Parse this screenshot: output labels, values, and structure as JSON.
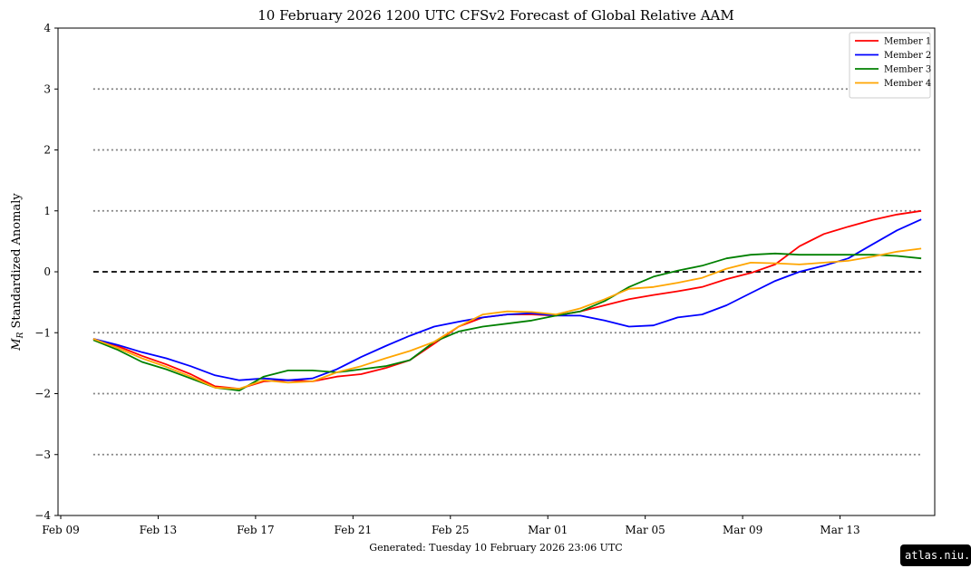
{
  "chart_data": {
    "type": "line",
    "title": "10  February  2026 1200 UTC   CFSv2 Forecast of Global Relative AAM",
    "ylabel_symbol": "M",
    "ylabel_subscript": "R",
    "ylabel": " Standardized Anomaly",
    "footer": "Generated: Tuesday  10  February  2026  23:06 UTC",
    "watermark": "atlas.niu.edu",
    "x_ticks": [
      "Feb 09",
      "Feb 13",
      "Feb 17",
      "Feb 21",
      "Feb 25",
      "Mar 01",
      "Mar 05",
      "Mar 09",
      "Mar 13"
    ],
    "y_ticks": [
      "−4",
      "−3",
      "−2",
      "−1",
      "0",
      "1",
      "2",
      "3",
      "4"
    ],
    "xlim": [
      "2026-02-09",
      "2026-03-17"
    ],
    "ylim": [
      -4,
      4
    ],
    "dotted_reference_lines": [
      -3,
      -2,
      -1,
      1,
      2,
      3
    ],
    "dashed_reference_line": 0,
    "legend_position": "top-right",
    "dates": [
      "2026-02-10",
      "2026-02-11",
      "2026-02-12",
      "2026-02-13",
      "2026-02-14",
      "2026-02-15",
      "2026-02-16",
      "2026-02-17",
      "2026-02-18",
      "2026-02-19",
      "2026-02-20",
      "2026-02-21",
      "2026-02-22",
      "2026-02-23",
      "2026-02-24",
      "2026-02-25",
      "2026-02-26",
      "2026-02-27",
      "2026-02-28",
      "2026-03-01",
      "2026-03-02",
      "2026-03-03",
      "2026-03-04",
      "2026-03-05",
      "2026-03-06",
      "2026-03-07",
      "2026-03-08",
      "2026-03-09",
      "2026-03-10",
      "2026-03-11",
      "2026-03-12",
      "2026-03-13",
      "2026-03-14",
      "2026-03-15",
      "2026-03-16"
    ],
    "series": [
      {
        "name": "Member 1",
        "color": "#ff0000",
        "values": [
          -1.1,
          -1.22,
          -1.38,
          -1.52,
          -1.68,
          -1.88,
          -1.92,
          -1.8,
          -1.78,
          -1.8,
          -1.72,
          -1.68,
          -1.58,
          -1.45,
          -1.18,
          -0.9,
          -0.75,
          -0.7,
          -0.7,
          -0.72,
          -0.65,
          -0.55,
          -0.45,
          -0.38,
          -0.32,
          -0.25,
          -0.12,
          -0.02,
          0.12,
          0.42,
          0.62,
          0.74,
          0.85,
          0.94,
          1.0
        ]
      },
      {
        "name": "Member 2",
        "color": "#0000ff",
        "values": [
          -1.1,
          -1.2,
          -1.32,
          -1.42,
          -1.55,
          -1.7,
          -1.78,
          -1.75,
          -1.78,
          -1.75,
          -1.6,
          -1.4,
          -1.22,
          -1.05,
          -0.9,
          -0.82,
          -0.75,
          -0.7,
          -0.68,
          -0.72,
          -0.72,
          -0.8,
          -0.9,
          -0.88,
          -0.75,
          -0.7,
          -0.55,
          -0.35,
          -0.15,
          0.0,
          0.1,
          0.22,
          0.45,
          0.68,
          0.86
        ]
      },
      {
        "name": "Member 3",
        "color": "#008000",
        "values": [
          -1.12,
          -1.28,
          -1.48,
          -1.6,
          -1.75,
          -1.9,
          -1.95,
          -1.72,
          -1.62,
          -1.62,
          -1.65,
          -1.6,
          -1.55,
          -1.45,
          -1.15,
          -0.98,
          -0.9,
          -0.85,
          -0.8,
          -0.72,
          -0.65,
          -0.48,
          -0.25,
          -0.08,
          0.02,
          0.1,
          0.22,
          0.28,
          0.3,
          0.28,
          0.28,
          0.28,
          0.28,
          0.26,
          0.22
        ]
      },
      {
        "name": "Member 4",
        "color": "#ffa500",
        "values": [
          -1.1,
          -1.25,
          -1.42,
          -1.56,
          -1.72,
          -1.9,
          -1.92,
          -1.78,
          -1.82,
          -1.8,
          -1.65,
          -1.55,
          -1.42,
          -1.3,
          -1.15,
          -0.9,
          -0.7,
          -0.65,
          -0.66,
          -0.7,
          -0.6,
          -0.45,
          -0.28,
          -0.25,
          -0.18,
          -0.1,
          0.05,
          0.15,
          0.14,
          0.12,
          0.15,
          0.18,
          0.25,
          0.33,
          0.38
        ]
      }
    ]
  }
}
